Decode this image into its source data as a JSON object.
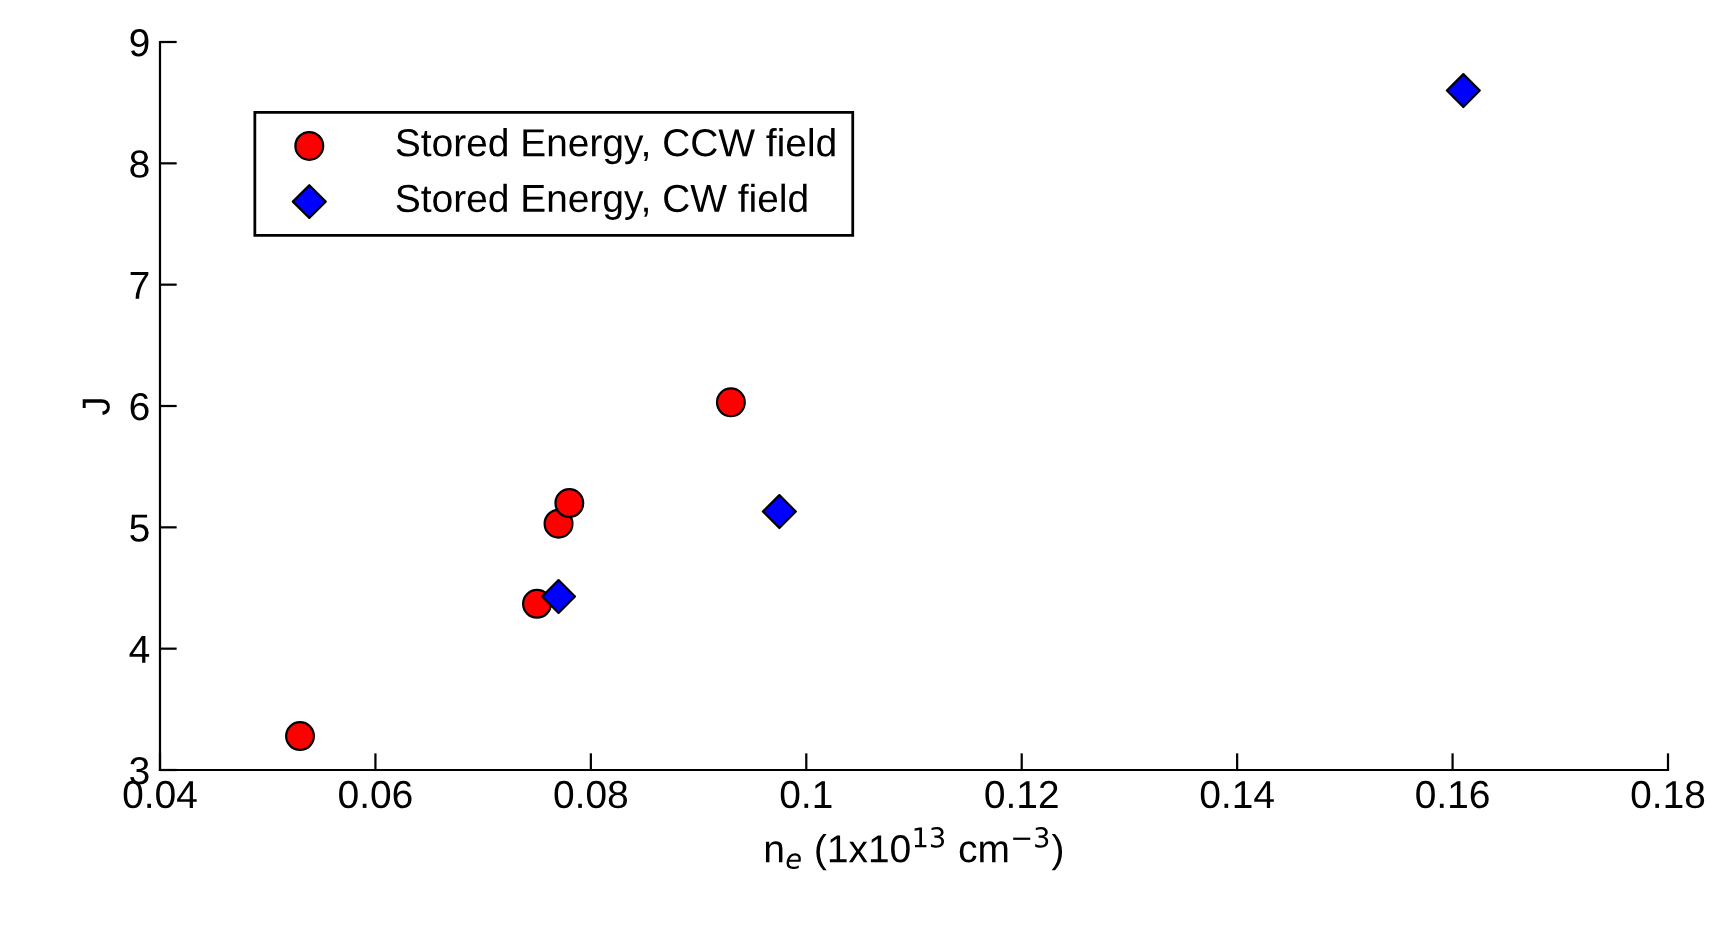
{
  "chart_data": {
    "type": "scatter",
    "xlabel": "n$_{e}$ (1x10$^{13}$ cm$^{−3}$)",
    "ylabel": "J",
    "xlim": [
      0.04,
      0.18
    ],
    "xticks": [
      0.04,
      0.06,
      0.08,
      0.1,
      0.12,
      0.14,
      0.16,
      0.18
    ],
    "ylim": [
      3,
      9
    ],
    "yticks": [
      3,
      4,
      5,
      6,
      7,
      8,
      9
    ],
    "grid": false,
    "legend": "top left",
    "series": [
      {
        "name": "Stored Energy, CCW field",
        "color": "#ff0000",
        "marker": "circle",
        "x": [
          0.053,
          0.075,
          0.077,
          0.078,
          0.093
        ],
        "values": [
          3.28,
          4.37,
          5.03,
          5.2,
          6.03
        ]
      },
      {
        "name": "Stored Energy, CW field",
        "color": "#0000ff",
        "marker": "diamond",
        "x": [
          0.077,
          0.0975,
          0.161
        ],
        "values": [
          4.43,
          5.13,
          8.6
        ]
      }
    ]
  }
}
